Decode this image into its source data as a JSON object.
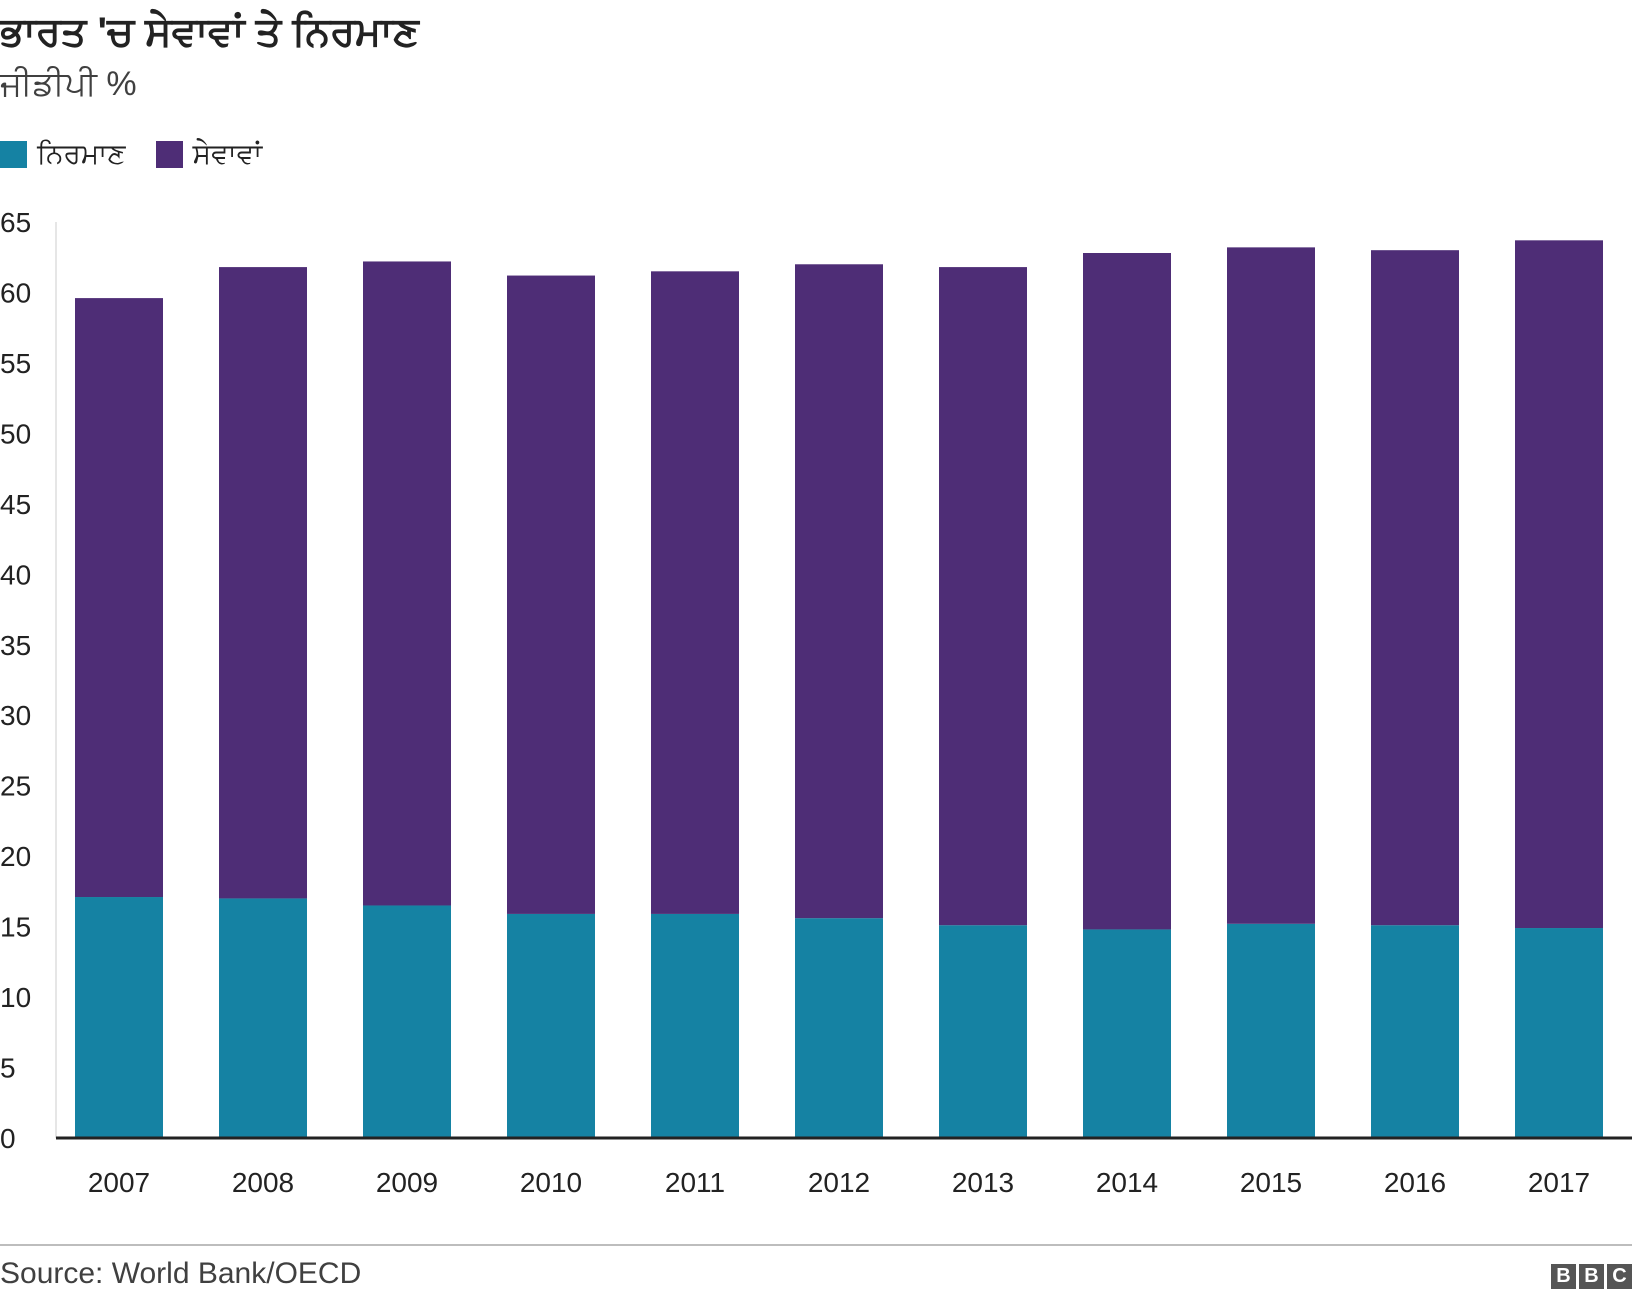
{
  "header": {
    "title": "ਭਾਰਤ 'ਚ ਸੇਵਾਵਾਂ ਤੇ ਨਿਰਮਾਣ",
    "subtitle": "ਜੀਡੀਪੀ %"
  },
  "colors": {
    "manufacturing": "#1582a3",
    "services": "#4e2d76",
    "axis": "#222222",
    "text": "#222222"
  },
  "legend": [
    {
      "label": "ਨਿਰਮਾਣ",
      "color": "#1582a3"
    },
    {
      "label": "ਸੇਵਾਵਾਂ",
      "color": "#4e2d76"
    }
  ],
  "chart_data": {
    "type": "bar",
    "stacked": true,
    "title": "ਭਾਰਤ 'ਚ ਸੇਵਾਵਾਂ ਤੇ ਨਿਰਮਾਣ",
    "ylabel": "ਜੀਡੀਪੀ %",
    "xlabel": "",
    "ylim": [
      0,
      65
    ],
    "yticks": [
      0,
      5,
      10,
      15,
      20,
      25,
      30,
      35,
      40,
      45,
      50,
      55,
      60,
      65
    ],
    "categories": [
      "2007",
      "2008",
      "2009",
      "2010",
      "2011",
      "2012",
      "2013",
      "2014",
      "2015",
      "2016",
      "2017"
    ],
    "series": [
      {
        "name": "ਨਿਰਮਾਣ",
        "color": "#1582a3",
        "values": [
          17.1,
          17.0,
          16.5,
          15.9,
          15.9,
          15.6,
          15.1,
          14.8,
          15.2,
          15.1,
          14.9
        ]
      },
      {
        "name": "ਸੇਵਾਵਾਂ",
        "color": "#4e2d76",
        "values": [
          42.5,
          44.8,
          45.7,
          45.3,
          45.6,
          46.4,
          46.7,
          48.0,
          48.0,
          47.9,
          48.8
        ]
      }
    ],
    "grid": false,
    "legend_position": "top-left"
  },
  "footer": {
    "source": "Source: World Bank/OECD",
    "logo_letters": [
      "B",
      "B",
      "C"
    ]
  }
}
